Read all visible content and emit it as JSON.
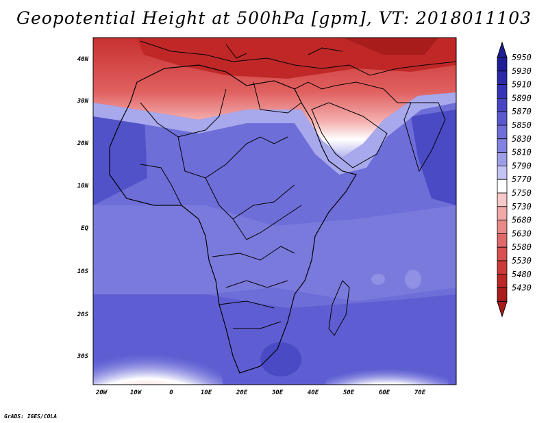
{
  "title": "Geopotential Height at 500hPa [gpm], VT: 2018011103",
  "credit": "GrADS: IGES/COLA",
  "map": {
    "lat_labels": [
      "40N",
      "30N",
      "20N",
      "10N",
      "EQ",
      "10S",
      "20S",
      "30S"
    ],
    "lon_labels": [
      "20W",
      "10W",
      "0",
      "10E",
      "20E",
      "30E",
      "40E",
      "50E",
      "60E",
      "70E"
    ],
    "field_colors": {
      "ocean_base": "#6b6bdc",
      "land_base": "#7878e0",
      "north_warm": "#d44040",
      "south_warm": "#f08888"
    }
  },
  "colorbar": {
    "levels": [
      "5950",
      "5930",
      "5910",
      "5890",
      "5870",
      "5850",
      "5830",
      "5810",
      "5790",
      "5770",
      "5750",
      "5730",
      "5680",
      "5630",
      "5580",
      "5530",
      "5480",
      "5430"
    ],
    "colors": [
      "#1e1e96",
      "#2a2aa8",
      "#3434b8",
      "#4646c4",
      "#5a5ad0",
      "#6e6ed8",
      "#8282e0",
      "#9e9ee8",
      "#c4c4f4",
      "#ffffff",
      "#f6c8c8",
      "#f0a8a8",
      "#e88888",
      "#e06a6a",
      "#d85050",
      "#cc3a3a",
      "#bc2828",
      "#a81c1c"
    ]
  }
}
